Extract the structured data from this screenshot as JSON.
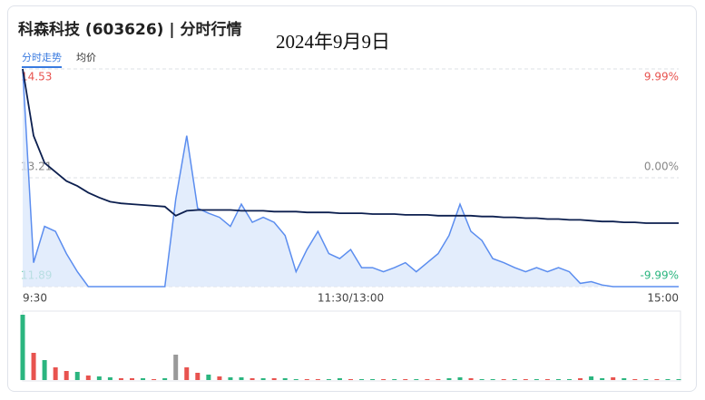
{
  "header": {
    "title": "科森科技 (603626) | 分时行情",
    "date": "2024年9月9日",
    "tabs": [
      "分时走势",
      "均价"
    ]
  },
  "chart_data": [
    {
      "type": "line",
      "categories": [
        "9:30",
        null,
        null,
        null,
        null,
        null,
        null,
        null,
        null,
        null,
        null,
        null,
        null,
        null,
        null,
        null,
        null,
        null,
        null,
        null,
        null,
        null,
        null,
        null,
        null,
        null,
        null,
        null,
        null,
        null,
        "11:30/13:00",
        null,
        null,
        null,
        null,
        null,
        null,
        null,
        null,
        null,
        null,
        null,
        null,
        null,
        null,
        null,
        null,
        null,
        null,
        null,
        null,
        null,
        null,
        null,
        null,
        null,
        null,
        null,
        null,
        null,
        "15:00"
      ],
      "series": [
        {
          "color": "#5b8def",
          "fill": "#dce8fb",
          "values": [
            14.53,
            12.18,
            12.62,
            12.56,
            12.29,
            12.07,
            11.89,
            11.89,
            11.89,
            11.89,
            11.89,
            11.89,
            11.89,
            11.89,
            12.95,
            13.72,
            12.84,
            12.78,
            12.73,
            12.62,
            12.89,
            12.67,
            12.73,
            12.67,
            12.51,
            12.07,
            12.34,
            12.56,
            12.29,
            12.23,
            12.34,
            12.12,
            12.12,
            12.07,
            12.12,
            12.18,
            12.07,
            12.18,
            12.29,
            12.51,
            12.89,
            12.56,
            12.45,
            12.23,
            12.18,
            12.12,
            12.07,
            12.12,
            12.07,
            12.12,
            12.07,
            11.93,
            11.95,
            11.91,
            11.89,
            11.89,
            11.89,
            11.89,
            11.89,
            11.89,
            11.89
          ]
        },
        {
          "color": "#0c1f4f",
          "values": [
            14.53,
            13.72,
            13.39,
            13.28,
            13.17,
            13.11,
            13.03,
            12.97,
            12.92,
            12.9,
            12.89,
            12.88,
            12.87,
            12.86,
            12.75,
            12.81,
            12.82,
            12.82,
            12.82,
            12.82,
            12.81,
            12.81,
            12.81,
            12.8,
            12.8,
            12.8,
            12.79,
            12.79,
            12.79,
            12.78,
            12.78,
            12.78,
            12.77,
            12.77,
            12.77,
            12.76,
            12.76,
            12.76,
            12.75,
            12.75,
            12.75,
            12.75,
            12.74,
            12.74,
            12.73,
            12.73,
            12.72,
            12.72,
            12.71,
            12.71,
            12.7,
            12.7,
            12.69,
            12.68,
            12.68,
            12.67,
            12.67,
            12.66,
            12.66,
            12.66,
            12.66
          ]
        }
      ],
      "ylim": [
        11.89,
        14.53
      ],
      "yticks": [
        11.89,
        13.21,
        14.53
      ],
      "y2lim": [
        -9.99,
        9.99
      ],
      "y2ticks": [
        {
          "value": -9.99,
          "label": "-9.99%"
        },
        {
          "value": 0,
          "label": "0.00%"
        },
        {
          "value": 9.99,
          "label": "9.99%"
        }
      ],
      "tick_colors": [
        "#2bb57f",
        "#888888",
        "#e8534f"
      ],
      "grid": true
    },
    {
      "type": "bar",
      "values": [
        72,
        30,
        22,
        14,
        10,
        9,
        5,
        4,
        3,
        2,
        2,
        2,
        1,
        2,
        28,
        14,
        8,
        6,
        4,
        3,
        3,
        2,
        2,
        2,
        2,
        1,
        1,
        1,
        1,
        2,
        1,
        1,
        1,
        1,
        1,
        1,
        1,
        1,
        1,
        2,
        3,
        2,
        1,
        1,
        1,
        1,
        1,
        1,
        1,
        1,
        1,
        2,
        4,
        2,
        3,
        2,
        1,
        1,
        1,
        1,
        1
      ],
      "colors": [
        "#2bb57f",
        "#e8534f",
        "#2bb57f",
        "#e8534f",
        "#e8534f",
        "#2bb57f",
        "#e8534f",
        "#2bb57f",
        "#2bb57f",
        "#e8534f",
        "#e8534f",
        "#2bb57f",
        "#e8534f",
        "#2bb57f",
        "#999999",
        "#e8534f",
        "#e8534f",
        "#2bb57f",
        "#e8534f",
        "#2bb57f",
        "#2bb57f",
        "#e8534f",
        "#2bb57f",
        "#e8534f",
        "#2bb57f",
        "#2bb57f",
        "#e8534f",
        "#e8534f",
        "#2bb57f",
        "#2bb57f",
        "#e8534f",
        "#2bb57f",
        "#2bb57f",
        "#e8534f",
        "#2bb57f",
        "#e8534f",
        "#2bb57f",
        "#e8534f",
        "#e8534f",
        "#2bb57f",
        "#2bb57f",
        "#e8534f",
        "#2bb57f",
        "#2bb57f",
        "#e8534f",
        "#2bb57f",
        "#e8534f",
        "#2bb57f",
        "#e8534f",
        "#2bb57f",
        "#2bb57f",
        "#e8534f",
        "#2bb57f",
        "#2bb57f",
        "#e8534f",
        "#2bb57f",
        "#e8534f",
        "#2bb57f",
        "#e8534f",
        "#2bb57f",
        "#2bb57f"
      ]
    }
  ]
}
